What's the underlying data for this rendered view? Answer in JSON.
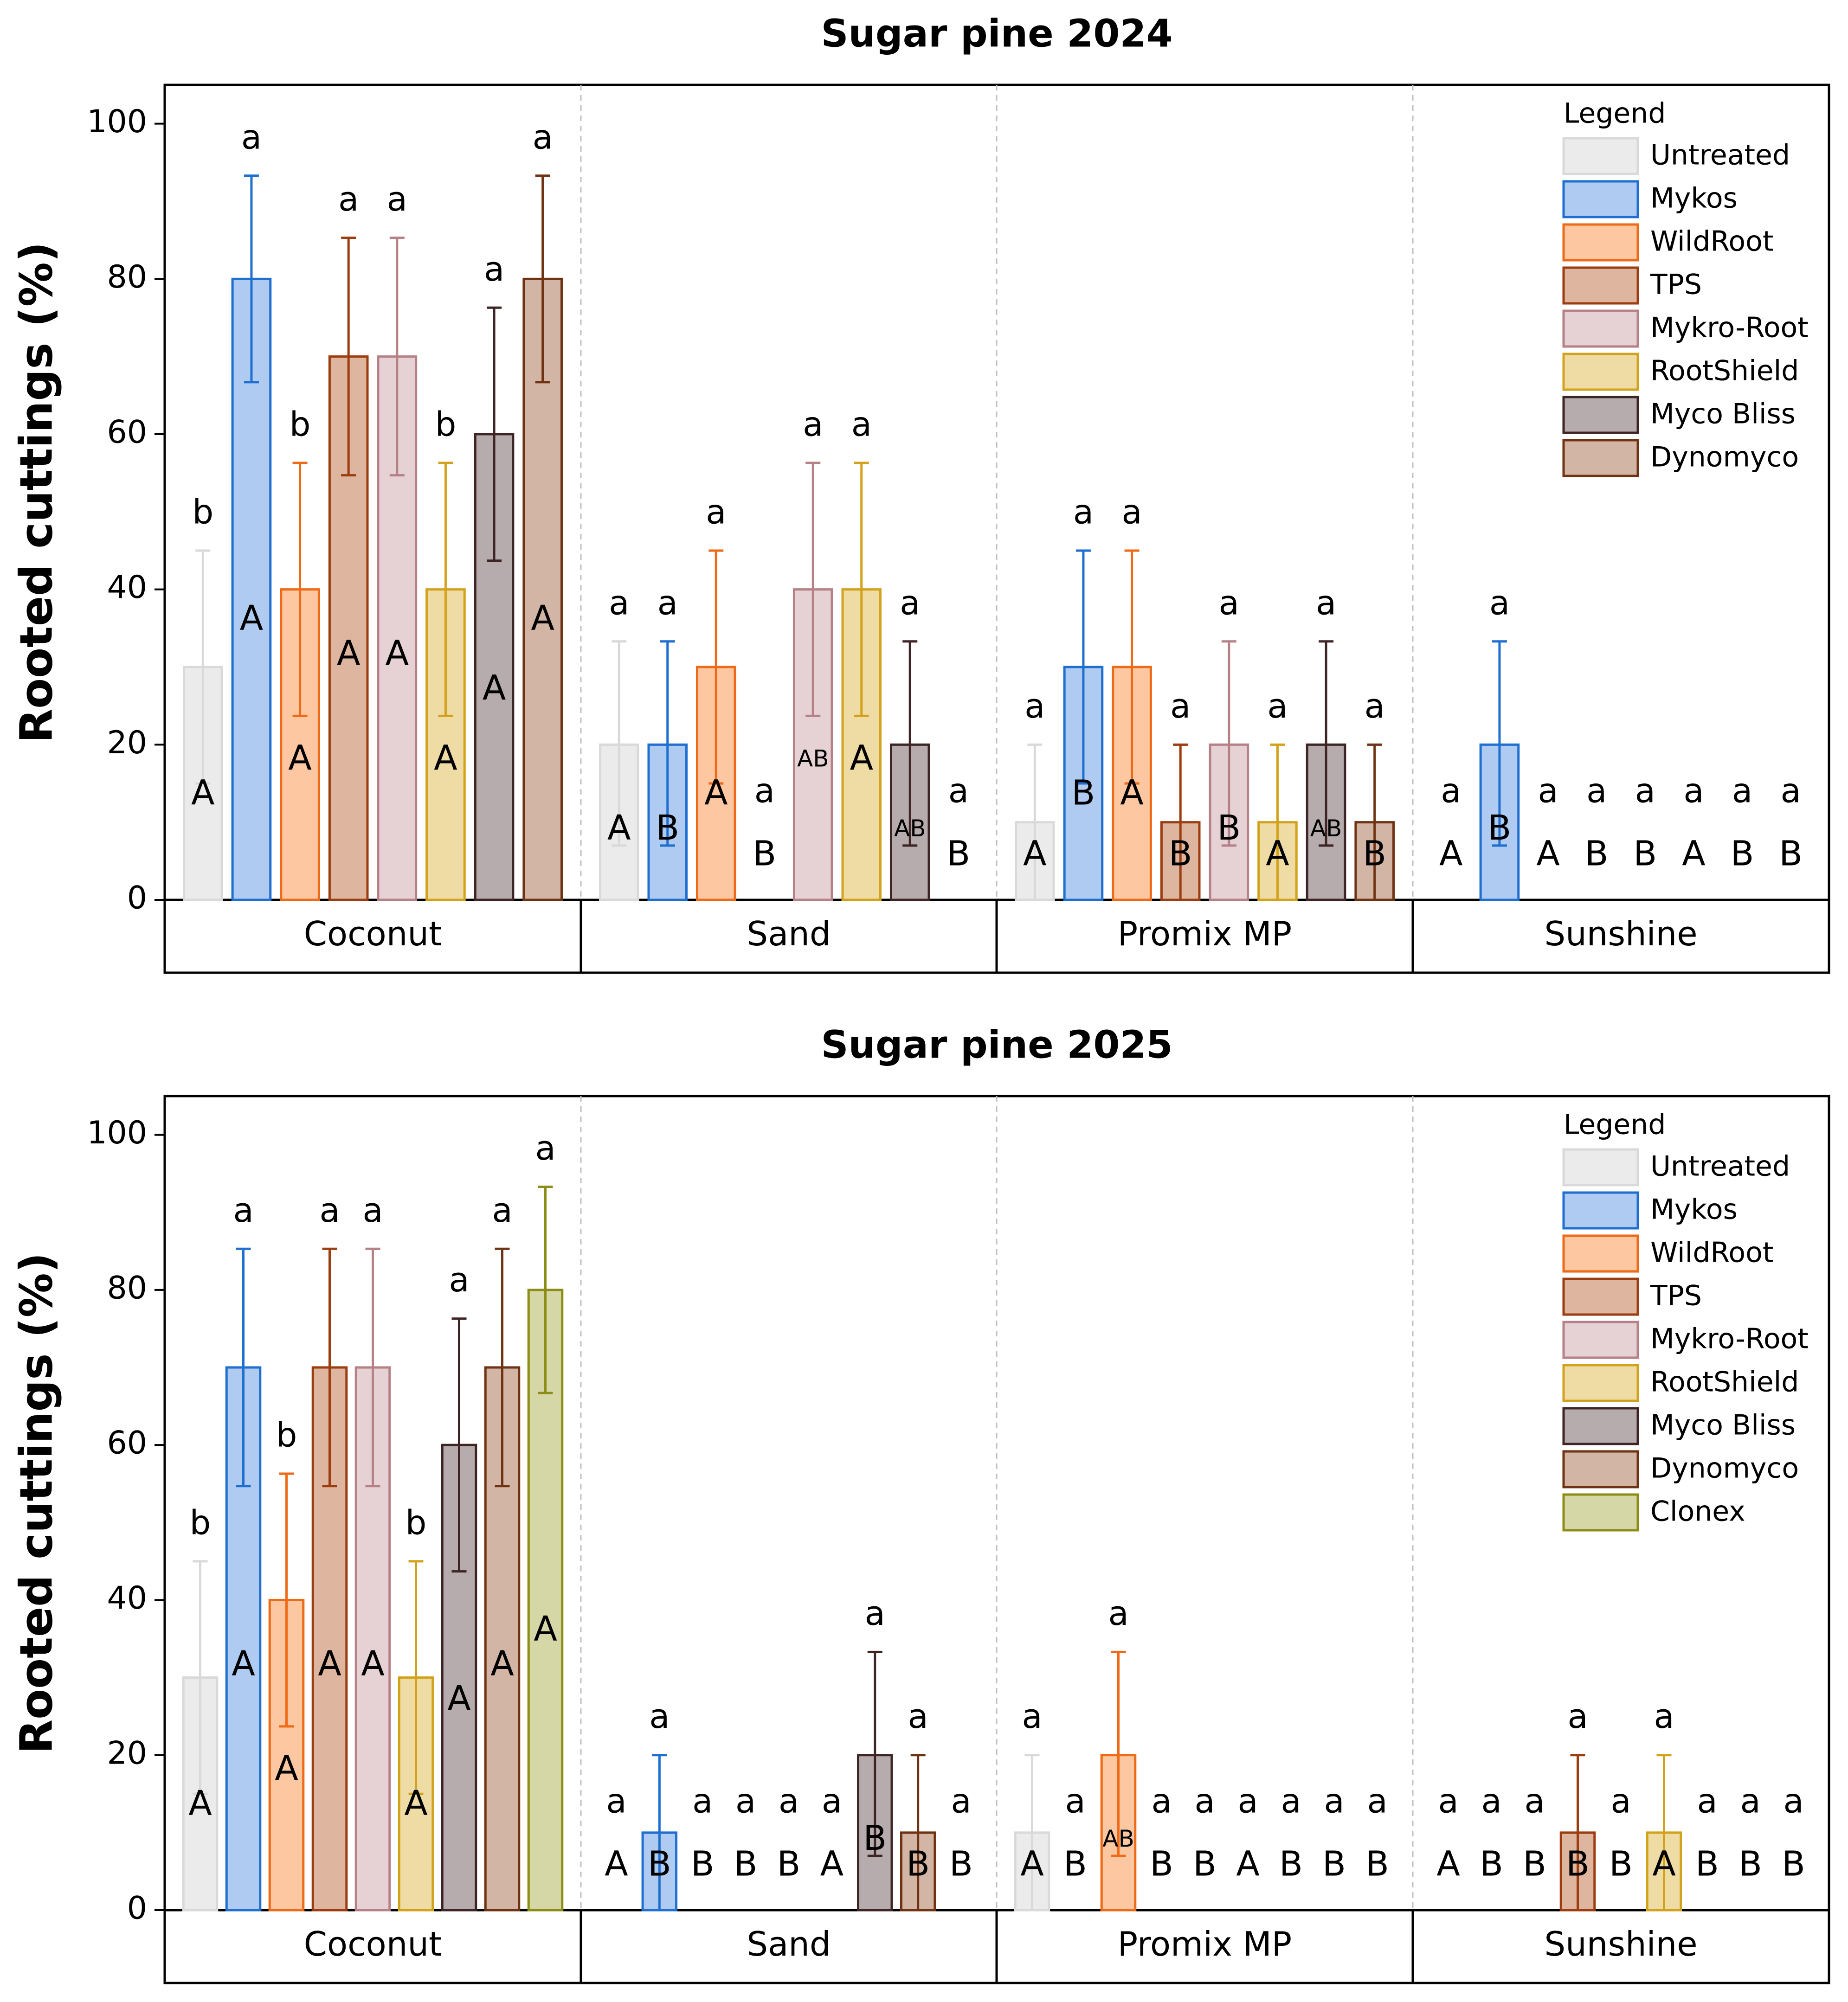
{
  "chart_data": [
    {
      "type": "bar",
      "title": "Sugar pine 2024",
      "ylabel": "Rooted cuttings (%)",
      "xlabel": "",
      "ylim": [
        0,
        105
      ],
      "yticks": [
        0,
        20,
        40,
        60,
        80,
        100
      ],
      "groups": [
        "Coconut",
        "Sand",
        "Promix MP",
        "Sunshine"
      ],
      "legend": {
        "title": "Legend",
        "position": "top-right",
        "entries": [
          "Untreated",
          "Mykos",
          "WildRoot",
          "TPS",
          "Mykro-Root",
          "RootShield",
          "Myco Bliss",
          "Dynomyco"
        ]
      },
      "series": [
        {
          "name": "Untreated",
          "fill": "#ebebeb",
          "stroke": "#d9d9d9",
          "values": [
            30,
            20,
            10,
            0
          ],
          "err_low": [
            15,
            7,
            0,
            0
          ],
          "err_high": [
            45,
            33.3,
            20,
            0
          ],
          "upper": [
            "b",
            "a",
            "a",
            "a"
          ],
          "lower": [
            "A",
            "A",
            "A",
            "A"
          ]
        },
        {
          "name": "Mykos",
          "fill": "#afcbf1",
          "stroke": "#1f6fd1",
          "values": [
            80,
            20,
            30,
            20
          ],
          "err_low": [
            66.7,
            7,
            15,
            7
          ],
          "err_high": [
            93.3,
            33.3,
            45,
            33.3
          ],
          "upper": [
            "a",
            "a",
            "a",
            "a"
          ],
          "lower": [
            "A",
            "B",
            "B",
            "B"
          ]
        },
        {
          "name": "WildRoot",
          "fill": "#fdc7a2",
          "stroke": "#ee6a16",
          "values": [
            40,
            30,
            30,
            0
          ],
          "err_low": [
            23.7,
            15,
            15,
            0
          ],
          "err_high": [
            56.3,
            45,
            45,
            0
          ],
          "upper": [
            "b",
            "a",
            "a",
            "a"
          ],
          "lower": [
            "A",
            "A",
            "A",
            "A"
          ]
        },
        {
          "name": "TPS",
          "fill": "#deb6a0",
          "stroke": "#9c3d10",
          "values": [
            70,
            0,
            10,
            0
          ],
          "err_low": [
            54.7,
            0,
            0,
            0
          ],
          "err_high": [
            85.3,
            0,
            20,
            0
          ],
          "upper": [
            "a",
            "a",
            "a",
            "a"
          ],
          "lower": [
            "A",
            "B",
            "B",
            "B"
          ]
        },
        {
          "name": "Mykro-Root",
          "fill": "#e6d1d4",
          "stroke": "#b58186",
          "values": [
            70,
            40,
            20,
            0
          ],
          "err_low": [
            54.7,
            23.7,
            7,
            0
          ],
          "err_high": [
            85.3,
            56.3,
            33.3,
            0
          ],
          "upper": [
            "a",
            "a",
            "a",
            "a"
          ],
          "lower": [
            "A",
            "AB",
            "B",
            "B"
          ]
        },
        {
          "name": "RootShield",
          "fill": "#efdca4",
          "stroke": "#d3a21d",
          "values": [
            40,
            40,
            10,
            0
          ],
          "err_low": [
            23.7,
            23.7,
            0,
            0
          ],
          "err_high": [
            56.3,
            56.3,
            20,
            0
          ],
          "upper": [
            "b",
            "a",
            "a",
            "a"
          ],
          "lower": [
            "A",
            "A",
            "A",
            "A"
          ]
        },
        {
          "name": "Myco Bliss",
          "fill": "#b6acad",
          "stroke": "#3e2424",
          "values": [
            60,
            20,
            20,
            0
          ],
          "err_low": [
            43.7,
            7,
            7,
            0
          ],
          "err_high": [
            76.3,
            33.3,
            33.3,
            0
          ],
          "upper": [
            "a",
            "a",
            "a",
            "a"
          ],
          "lower": [
            "A",
            "AB",
            "AB",
            "B"
          ]
        },
        {
          "name": "Dynomyco",
          "fill": "#d3b5a6",
          "stroke": "#6f3313",
          "values": [
            80,
            0,
            10,
            0
          ],
          "err_low": [
            66.7,
            0,
            0,
            0
          ],
          "err_high": [
            93.3,
            0,
            20,
            0
          ],
          "upper": [
            "a",
            "a",
            "a",
            "a"
          ],
          "lower": [
            "A",
            "B",
            "B",
            "B"
          ]
        }
      ]
    },
    {
      "type": "bar",
      "title": "Sugar pine 2025",
      "ylabel": "Rooted cuttings (%)",
      "xlabel": "",
      "ylim": [
        0,
        105
      ],
      "yticks": [
        0,
        20,
        40,
        60,
        80,
        100
      ],
      "groups": [
        "Coconut",
        "Sand",
        "Promix MP",
        "Sunshine"
      ],
      "legend": {
        "title": "Legend",
        "position": "top-right",
        "entries": [
          "Untreated",
          "Mykos",
          "WildRoot",
          "TPS",
          "Mykro-Root",
          "RootShield",
          "Myco Bliss",
          "Dynomyco",
          "Clonex"
        ]
      },
      "series": [
        {
          "name": "Untreated",
          "fill": "#ebebeb",
          "stroke": "#d9d9d9",
          "values": [
            30,
            0,
            10,
            0
          ],
          "err_low": [
            15,
            0,
            0,
            0
          ],
          "err_high": [
            45,
            0,
            20,
            0
          ],
          "upper": [
            "b",
            "a",
            "a",
            "a"
          ],
          "lower": [
            "A",
            "A",
            "A",
            "A"
          ]
        },
        {
          "name": "Mykos",
          "fill": "#afcbf1",
          "stroke": "#1f6fd1",
          "values": [
            70,
            10,
            0,
            0
          ],
          "err_low": [
            54.7,
            0,
            0,
            0
          ],
          "err_high": [
            85.3,
            20,
            0,
            0
          ],
          "upper": [
            "a",
            "a",
            "a",
            "a"
          ],
          "lower": [
            "A",
            "B",
            "B",
            "B"
          ]
        },
        {
          "name": "WildRoot",
          "fill": "#fdc7a2",
          "stroke": "#ee6a16",
          "values": [
            40,
            0,
            20,
            0
          ],
          "err_low": [
            23.7,
            0,
            7,
            0
          ],
          "err_high": [
            56.3,
            0,
            33.3,
            0
          ],
          "upper": [
            "b",
            "a",
            "a",
            "a"
          ],
          "lower": [
            "A",
            "B",
            "AB",
            "B"
          ]
        },
        {
          "name": "TPS",
          "fill": "#deb6a0",
          "stroke": "#9c3d10",
          "values": [
            70,
            0,
            0,
            10
          ],
          "err_low": [
            54.7,
            0,
            0,
            0
          ],
          "err_high": [
            85.3,
            0,
            0,
            20
          ],
          "upper": [
            "a",
            "a",
            "a",
            "a"
          ],
          "lower": [
            "A",
            "B",
            "B",
            "B"
          ]
        },
        {
          "name": "Mykro-Root",
          "fill": "#e6d1d4",
          "stroke": "#b58186",
          "values": [
            70,
            0,
            0,
            0
          ],
          "err_low": [
            54.7,
            0,
            0,
            0
          ],
          "err_high": [
            85.3,
            0,
            0,
            0
          ],
          "upper": [
            "a",
            "a",
            "a",
            "a"
          ],
          "lower": [
            "A",
            "B",
            "B",
            "B"
          ]
        },
        {
          "name": "RootShield",
          "fill": "#efdca4",
          "stroke": "#d3a21d",
          "values": [
            30,
            0,
            0,
            10
          ],
          "err_low": [
            15,
            0,
            0,
            0
          ],
          "err_high": [
            45,
            0,
            0,
            20
          ],
          "upper": [
            "b",
            "a",
            "a",
            "a"
          ],
          "lower": [
            "A",
            "A",
            "A",
            "A"
          ]
        },
        {
          "name": "Myco Bliss",
          "fill": "#b6acad",
          "stroke": "#3e2424",
          "values": [
            60,
            20,
            0,
            0
          ],
          "err_low": [
            43.7,
            7,
            0,
            0
          ],
          "err_high": [
            76.3,
            33.3,
            0,
            0
          ],
          "upper": [
            "a",
            "a",
            "a",
            "a"
          ],
          "lower": [
            "A",
            "B",
            "B",
            "B"
          ]
        },
        {
          "name": "Dynomyco",
          "fill": "#d3b5a6",
          "stroke": "#6f3313",
          "values": [
            70,
            10,
            0,
            0
          ],
          "err_low": [
            54.7,
            0,
            0,
            0
          ],
          "err_high": [
            85.3,
            20,
            0,
            0
          ],
          "upper": [
            "a",
            "a",
            "a",
            "a"
          ],
          "lower": [
            "A",
            "B",
            "B",
            "B"
          ]
        },
        {
          "name": "Clonex",
          "fill": "#d6d7a6",
          "stroke": "#8c8d14",
          "values": [
            80,
            0,
            0,
            0
          ],
          "err_low": [
            66.7,
            0,
            0,
            0
          ],
          "err_high": [
            93.3,
            0,
            0,
            0
          ],
          "upper": [
            "a",
            "a",
            "a",
            "a"
          ],
          "lower": [
            "A",
            "B",
            "B",
            "B"
          ]
        }
      ]
    }
  ]
}
